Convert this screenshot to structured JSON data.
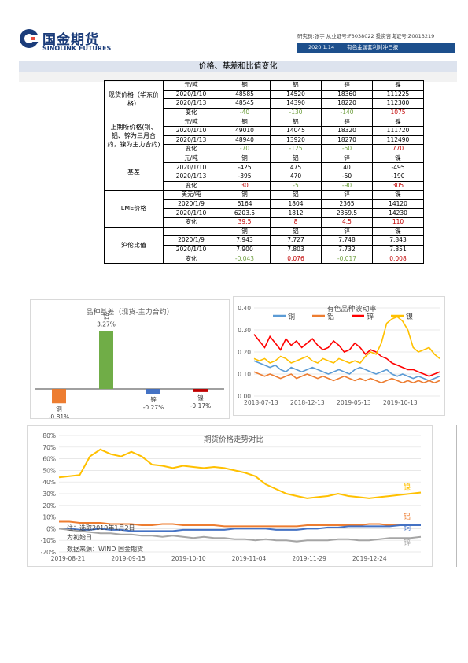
{
  "header": {
    "logo_cn": "国金期货",
    "logo_en": "SINOLINK FUTURES",
    "analyst": "研究员:张宇  从业证号:F3038022  投资咨询证号:Z0013219",
    "date": "2020.1.14",
    "report": "有色金属套利对冲日报"
  },
  "section_title": "价格、基差和比值变化",
  "table": {
    "groups": [
      {
        "label": "现货价格（华东价格）",
        "rows": [
          [
            "元/吨",
            "铜",
            "铝",
            "锌",
            "镍"
          ],
          [
            "2020/1/10",
            "48585",
            "14520",
            "18360",
            "111225"
          ],
          [
            "2020/1/13",
            "48545",
            "14390",
            "18220",
            "112300"
          ],
          [
            "变化",
            "-40",
            "-130",
            "-140",
            "1075"
          ]
        ]
      },
      {
        "label": "上期所价格(铜、铝、锌为三月合约，镍为主力合约)",
        "rows": [
          [
            "元/吨",
            "铜",
            "铝",
            "锌",
            "镍"
          ],
          [
            "2020/1/10",
            "49010",
            "14045",
            "18320",
            "111720"
          ],
          [
            "2020/1/13",
            "48940",
            "13920",
            "18270",
            "112490"
          ],
          [
            "变化",
            "-70",
            "-125",
            "-50",
            "770"
          ]
        ]
      },
      {
        "label": "基差",
        "rows": [
          [
            "元/吨",
            "铜",
            "铝",
            "锌",
            "镍"
          ],
          [
            "2020/1/10",
            "-425",
            "475",
            "40",
            "-495"
          ],
          [
            "2020/1/13",
            "-395",
            "470",
            "-50",
            "-190"
          ],
          [
            "变化",
            "30",
            "-5",
            "-90",
            "305"
          ]
        ]
      },
      {
        "label": "LME价格",
        "rows": [
          [
            "美元/吨",
            "铜",
            "铝",
            "锌",
            "镍"
          ],
          [
            "2020/1/9",
            "6164",
            "1804",
            "2365",
            "14120"
          ],
          [
            "2020/1/10",
            "6203.5",
            "1812",
            "2369.5",
            "14230"
          ],
          [
            "变化",
            "39.5",
            "8",
            "4.5",
            "110"
          ]
        ]
      },
      {
        "label": "沪伦比值",
        "rows": [
          [
            "",
            "铜",
            "铝",
            "锌",
            "镍"
          ],
          [
            "2020/1/9",
            "7.943",
            "7.727",
            "7.748",
            "7.843"
          ],
          [
            "2020/1/10",
            "7.900",
            "7.803",
            "7.732",
            "7.851"
          ],
          [
            "变化",
            "-0.043",
            "0.076",
            "-0.017",
            "0.008"
          ]
        ]
      }
    ]
  },
  "chart_data": [
    {
      "type": "bar",
      "title": "品种基差（现货-主力合约）",
      "categories": [
        "铜",
        "铝",
        "锌",
        "镍"
      ],
      "values": [
        -0.81,
        3.27,
        -0.27,
        -0.17
      ],
      "value_labels": [
        "-0.81%",
        "3.27%",
        "-0.27%",
        "-0.17%"
      ],
      "colors": [
        "#ed7d31",
        "#70ad47",
        "#4472c4",
        "#c00000"
      ],
      "ylim": [
        -1.2,
        3.7
      ]
    },
    {
      "type": "line",
      "title": "有色品种波动率",
      "x_ticks": [
        "2018-07-13",
        "2018-12-13",
        "2019-05-13",
        "2019-10-13"
      ],
      "y_ticks": [
        "0.00",
        "0.10",
        "0.20",
        "0.30",
        "0.40"
      ],
      "ylim": [
        0,
        0.4
      ],
      "legend_position": "top",
      "series": [
        {
          "name": "铜",
          "color": "#5b9bd5",
          "values": [
            0.16,
            0.15,
            0.14,
            0.13,
            0.14,
            0.12,
            0.11,
            0.13,
            0.12,
            0.11,
            0.12,
            0.13,
            0.12,
            0.11,
            0.1,
            0.11,
            0.12,
            0.11,
            0.1,
            0.12,
            0.13,
            0.12,
            0.11,
            0.1,
            0.11,
            0.12,
            0.1,
            0.09,
            0.1,
            0.09,
            0.08,
            0.09,
            0.08,
            0.07,
            0.08,
            0.09
          ]
        },
        {
          "name": "铝",
          "color": "#ed7d31",
          "values": [
            0.11,
            0.1,
            0.09,
            0.1,
            0.09,
            0.08,
            0.09,
            0.1,
            0.08,
            0.09,
            0.1,
            0.09,
            0.08,
            0.09,
            0.08,
            0.07,
            0.08,
            0.09,
            0.08,
            0.07,
            0.08,
            0.07,
            0.08,
            0.07,
            0.06,
            0.07,
            0.08,
            0.07,
            0.06,
            0.07,
            0.06,
            0.07,
            0.06,
            0.07,
            0.06,
            0.07
          ]
        },
        {
          "name": "锌",
          "color": "#ff0000",
          "values": [
            0.28,
            0.25,
            0.22,
            0.27,
            0.24,
            0.21,
            0.26,
            0.23,
            0.25,
            0.22,
            0.24,
            0.26,
            0.23,
            0.21,
            0.22,
            0.25,
            0.23,
            0.2,
            0.21,
            0.24,
            0.22,
            0.19,
            0.21,
            0.2,
            0.18,
            0.17,
            0.15,
            0.14,
            0.13,
            0.12,
            0.12,
            0.11,
            0.1,
            0.09,
            0.1,
            0.11
          ]
        },
        {
          "name": "镍",
          "color": "#ffc000",
          "values": [
            0.17,
            0.16,
            0.17,
            0.15,
            0.16,
            0.18,
            0.17,
            0.15,
            0.16,
            0.17,
            0.18,
            0.16,
            0.15,
            0.17,
            0.16,
            0.15,
            0.17,
            0.16,
            0.15,
            0.16,
            0.15,
            0.18,
            0.2,
            0.19,
            0.24,
            0.33,
            0.35,
            0.36,
            0.34,
            0.3,
            0.22,
            0.2,
            0.21,
            0.22,
            0.19,
            0.17
          ]
        }
      ]
    },
    {
      "type": "line",
      "title": "期货价格走势对比",
      "x_ticks": [
        "2019-08-21",
        "2019-09-15",
        "2019-10-10",
        "2019-11-04",
        "2019-11-29",
        "2019-12-24"
      ],
      "y_ticks": [
        "-20%",
        "-10%",
        "0%",
        "10%",
        "20%",
        "30%",
        "40%",
        "50%",
        "60%",
        "70%",
        "80%"
      ],
      "ylim": [
        -20,
        80
      ],
      "series": [
        {
          "name": "镍",
          "color": "#ffc000",
          "values": [
            44,
            45,
            46,
            62,
            68,
            64,
            62,
            66,
            62,
            55,
            54,
            52,
            54,
            53,
            52,
            53,
            52,
            50,
            48,
            45,
            38,
            34,
            30,
            28,
            26,
            27,
            28,
            30,
            28,
            27,
            26,
            27,
            28,
            29,
            30,
            31
          ]
        },
        {
          "name": "铝",
          "color": "#ed7d31",
          "values": [
            6,
            6,
            5,
            5,
            5,
            4,
            4,
            4,
            3,
            3,
            4,
            4,
            3,
            3,
            3,
            3,
            2,
            2,
            2,
            2,
            2,
            2,
            2,
            2,
            3,
            3,
            3,
            3,
            3,
            3,
            4,
            4,
            3,
            3,
            3,
            3
          ]
        },
        {
          "name": "铜",
          "color": "#4472c4",
          "values": [
            0,
            0,
            -1,
            -1,
            0,
            -1,
            -1,
            -2,
            -2,
            -2,
            -2,
            -2,
            -1,
            -1,
            -1,
            -1,
            -1,
            0,
            0,
            0,
            0,
            -1,
            -1,
            -1,
            0,
            0,
            1,
            1,
            2,
            2,
            2,
            2,
            2,
            3,
            3,
            3
          ]
        },
        {
          "name": "锌",
          "color": "#a5a5a5",
          "values": [
            0,
            -1,
            -2,
            -3,
            -4,
            -4,
            -5,
            -5,
            -6,
            -6,
            -7,
            -6,
            -7,
            -8,
            -7,
            -8,
            -8,
            -9,
            -9,
            -10,
            -9,
            -10,
            -10,
            -11,
            -10,
            -10,
            -10,
            -9,
            -9,
            -10,
            -10,
            -9,
            -8,
            -8,
            -8,
            -7
          ]
        }
      ],
      "annotation": [
        "注：选取2019年1月2日",
        "为初始日"
      ],
      "source": "数据来源：WIND 国金期货"
    }
  ]
}
